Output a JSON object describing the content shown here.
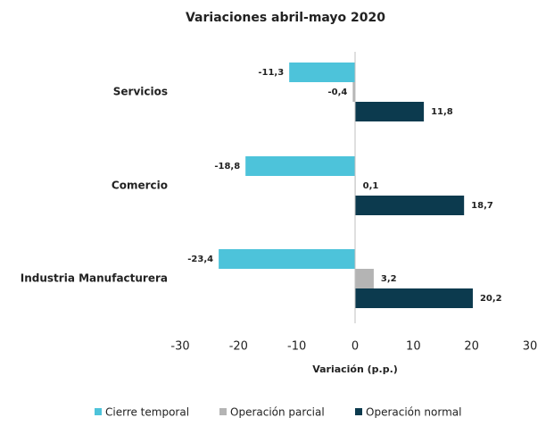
{
  "chart_data": {
    "type": "hbar",
    "title": "Variaciones abril-mayo 2020",
    "categories": [
      "Servicios",
      "Comercio",
      "Industria Manufacturera"
    ],
    "series": [
      {
        "name": "Cierre temporal",
        "color": "#4dc3da",
        "values": [
          -11.3,
          -18.8,
          -23.4
        ],
        "value_labels": [
          "-11,3",
          "-18,8",
          "-23,4"
        ]
      },
      {
        "name": "Operación parcial",
        "color": "#b4b4b4",
        "values": [
          -0.4,
          0.1,
          3.2
        ],
        "value_labels": [
          "-0,4",
          "0,1",
          "3,2"
        ]
      },
      {
        "name": "Operación normal",
        "color": "#0c3a4e",
        "values": [
          11.8,
          18.7,
          20.2
        ],
        "value_labels": [
          "11,8",
          "18,7",
          "20,2"
        ]
      }
    ],
    "xlabel": "Variación (p.p.)",
    "xlim": [
      -30,
      30
    ],
    "xticks": [
      -30,
      -20,
      -10,
      0,
      10,
      20,
      30
    ],
    "legend": "bottom"
  }
}
